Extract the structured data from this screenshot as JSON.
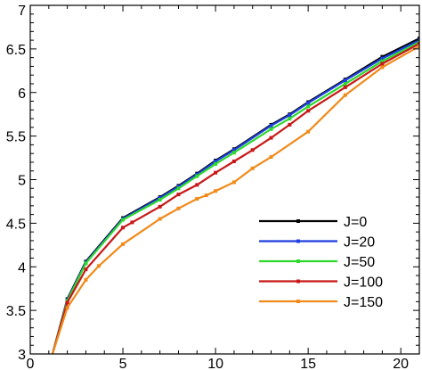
{
  "chart_data": {
    "type": "line",
    "title": "",
    "xlabel": "",
    "ylabel": "",
    "xlim": [
      0,
      21
    ],
    "ylim": [
      3,
      7
    ],
    "xticks": [
      "0",
      "5",
      "10",
      "15",
      "20"
    ],
    "yticks": [
      "3",
      "3.5",
      "4",
      "4.5",
      "5",
      "5.5",
      "6",
      "6.5",
      "7"
    ],
    "grid": false,
    "legend_position": "bottom-right",
    "series": [
      {
        "name": "J=0",
        "color": "#000000",
        "points": [
          [
            1.2,
            3.0
          ],
          [
            2,
            3.63
          ],
          [
            3,
            4.06
          ],
          [
            5,
            4.56
          ],
          [
            7,
            4.8
          ],
          [
            8,
            4.93
          ],
          [
            9,
            5.07
          ],
          [
            10,
            5.22
          ],
          [
            11,
            5.35
          ],
          [
            13,
            5.63
          ],
          [
            14,
            5.75
          ],
          [
            15,
            5.89
          ],
          [
            17,
            6.15
          ],
          [
            19,
            6.41
          ],
          [
            21,
            6.62
          ]
        ]
      },
      {
        "name": "J=20",
        "color": "#1f3fe0",
        "points": [
          [
            1.2,
            3.0
          ],
          [
            2,
            3.62
          ],
          [
            3,
            4.05
          ],
          [
            5,
            4.55
          ],
          [
            7,
            4.79
          ],
          [
            8,
            4.92
          ],
          [
            9,
            5.06
          ],
          [
            10,
            5.21
          ],
          [
            11,
            5.34
          ],
          [
            13,
            5.62
          ],
          [
            14,
            5.74
          ],
          [
            15,
            5.88
          ],
          [
            17,
            6.14
          ],
          [
            19,
            6.39
          ],
          [
            21,
            6.6
          ]
        ]
      },
      {
        "name": "J=50",
        "color": "#2ed82e",
        "points": [
          [
            1.2,
            3.0
          ],
          [
            2,
            3.61
          ],
          [
            3,
            4.04
          ],
          [
            5,
            4.54
          ],
          [
            7,
            4.77
          ],
          [
            8,
            4.9
          ],
          [
            9,
            5.04
          ],
          [
            10,
            5.18
          ],
          [
            11,
            5.31
          ],
          [
            13,
            5.58
          ],
          [
            14,
            5.7
          ],
          [
            15,
            5.84
          ],
          [
            17,
            6.1
          ],
          [
            19,
            6.36
          ],
          [
            21,
            6.58
          ]
        ]
      },
      {
        "name": "J=100",
        "color": "#c81818",
        "points": [
          [
            1.2,
            3.0
          ],
          [
            2,
            3.59
          ],
          [
            3,
            3.97
          ],
          [
            5,
            4.45
          ],
          [
            5.5,
            4.51
          ],
          [
            7,
            4.69
          ],
          [
            8,
            4.83
          ],
          [
            9,
            4.94
          ],
          [
            10,
            5.08
          ],
          [
            11,
            5.21
          ],
          [
            12,
            5.34
          ],
          [
            13,
            5.48
          ],
          [
            14,
            5.63
          ],
          [
            15,
            5.79
          ],
          [
            17,
            6.06
          ],
          [
            19,
            6.33
          ],
          [
            21,
            6.56
          ]
        ]
      },
      {
        "name": "J=150",
        "color": "#f08a1a",
        "points": [
          [
            1.2,
            3.0
          ],
          [
            2,
            3.53
          ],
          [
            3,
            3.85
          ],
          [
            3.7,
            4.01
          ],
          [
            5,
            4.26
          ],
          [
            7,
            4.55
          ],
          [
            8,
            4.67
          ],
          [
            9,
            4.78
          ],
          [
            9.5,
            4.82
          ],
          [
            10,
            4.87
          ],
          [
            11,
            4.97
          ],
          [
            12,
            5.13
          ],
          [
            13,
            5.26
          ],
          [
            15,
            5.55
          ],
          [
            17,
            5.97
          ],
          [
            19,
            6.29
          ],
          [
            21,
            6.53
          ]
        ]
      }
    ]
  }
}
